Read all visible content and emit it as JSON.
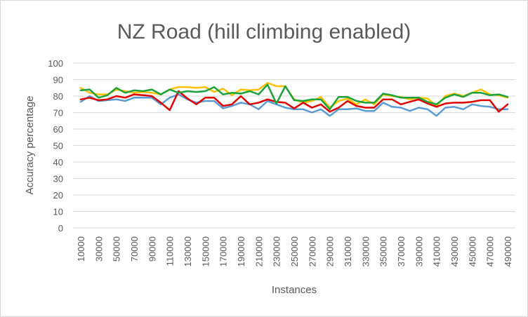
{
  "chart_data": {
    "type": "line",
    "title": "NZ Road (hill climbing enabled)",
    "xlabel": "Instances",
    "ylabel": "Accuracy percentage",
    "ylim": [
      0,
      100
    ],
    "y_ticks": [
      0,
      10,
      20,
      30,
      40,
      50,
      60,
      70,
      80,
      90,
      100
    ],
    "x_tick_labels": [
      "10000",
      "30000",
      "50000",
      "70000",
      "90000",
      "110000",
      "130000",
      "150000",
      "170000",
      "190000",
      "210000",
      "230000",
      "250000",
      "270000",
      "290000",
      "310000",
      "330000",
      "350000",
      "370000",
      "390000",
      "410000",
      "430000",
      "450000",
      "470000",
      "490000"
    ],
    "x": [
      10000,
      20000,
      30000,
      40000,
      50000,
      60000,
      70000,
      80000,
      90000,
      100000,
      110000,
      120000,
      130000,
      140000,
      150000,
      160000,
      170000,
      180000,
      190000,
      200000,
      210000,
      220000,
      230000,
      240000,
      250000,
      260000,
      270000,
      280000,
      290000,
      300000,
      310000,
      320000,
      330000,
      340000,
      350000,
      360000,
      370000,
      380000,
      390000,
      400000,
      410000,
      420000,
      430000,
      440000,
      450000,
      460000,
      470000,
      480000,
      490000
    ],
    "grid": true,
    "legend": "none",
    "series": [
      {
        "color": "#5B9BD5",
        "values": [
          76.5,
          80.0,
          77.0,
          77.5,
          78.0,
          77.0,
          79.0,
          79.0,
          79.0,
          75.0,
          79.0,
          81.0,
          78.0,
          76.0,
          77.0,
          77.0,
          72.5,
          74.0,
          76.0,
          75.0,
          72.0,
          77.0,
          75.0,
          73.0,
          72.0,
          72.0,
          70.0,
          72.0,
          68.0,
          72.0,
          72.0,
          72.5,
          71.0,
          71.0,
          76.0,
          73.5,
          73.0,
          71.0,
          73.0,
          72.0,
          68.0,
          73.0,
          73.5,
          72.0,
          75.0,
          74.0,
          73.5,
          72.0,
          72.0
        ]
      },
      {
        "color": "#FFC000",
        "values": [
          85.0,
          82.0,
          81.0,
          81.0,
          84.0,
          83.0,
          82.0,
          82.5,
          82.0,
          81.0,
          84.0,
          85.5,
          85.5,
          85.0,
          85.5,
          82.5,
          84.5,
          80.5,
          84.0,
          83.5,
          84.0,
          88.0,
          86.0,
          86.0,
          78.0,
          76.0,
          77.0,
          79.5,
          73.0,
          77.0,
          78.5,
          75.0,
          78.0,
          75.0,
          81.0,
          80.0,
          79.5,
          78.0,
          79.0,
          78.5,
          74.0,
          80.0,
          81.5,
          80.0,
          82.0,
          84.0,
          81.0,
          80.5,
          79.0
        ]
      },
      {
        "color": "#E00000",
        "values": [
          78.0,
          79.0,
          77.5,
          78.0,
          80.0,
          79.0,
          81.0,
          80.5,
          80.0,
          76.0,
          71.5,
          83.0,
          78.5,
          75.0,
          79.0,
          79.0,
          74.0,
          75.0,
          80.0,
          75.0,
          76.0,
          78.0,
          76.5,
          76.0,
          72.5,
          76.0,
          73.0,
          75.0,
          70.5,
          73.0,
          77.0,
          74.0,
          73.0,
          73.0,
          78.0,
          78.0,
          75.0,
          76.5,
          78.0,
          75.5,
          73.5,
          75.5,
          76.0,
          76.0,
          76.5,
          77.5,
          77.5,
          70.5,
          75.0
        ]
      },
      {
        "color": "#1AA33B",
        "values": [
          83.5,
          84.0,
          79.0,
          80.5,
          85.0,
          82.0,
          83.5,
          83.0,
          84.0,
          81.0,
          84.0,
          82.0,
          83.0,
          82.5,
          83.0,
          85.5,
          81.0,
          82.0,
          81.5,
          83.0,
          81.0,
          87.0,
          75.5,
          86.0,
          77.5,
          77.0,
          78.0,
          78.0,
          72.0,
          79.5,
          79.5,
          77.0,
          76.0,
          76.0,
          81.5,
          80.5,
          79.0,
          79.0,
          79.0,
          76.5,
          75.0,
          79.0,
          81.0,
          79.5,
          82.0,
          82.0,
          80.5,
          81.0,
          79.5
        ]
      }
    ]
  }
}
